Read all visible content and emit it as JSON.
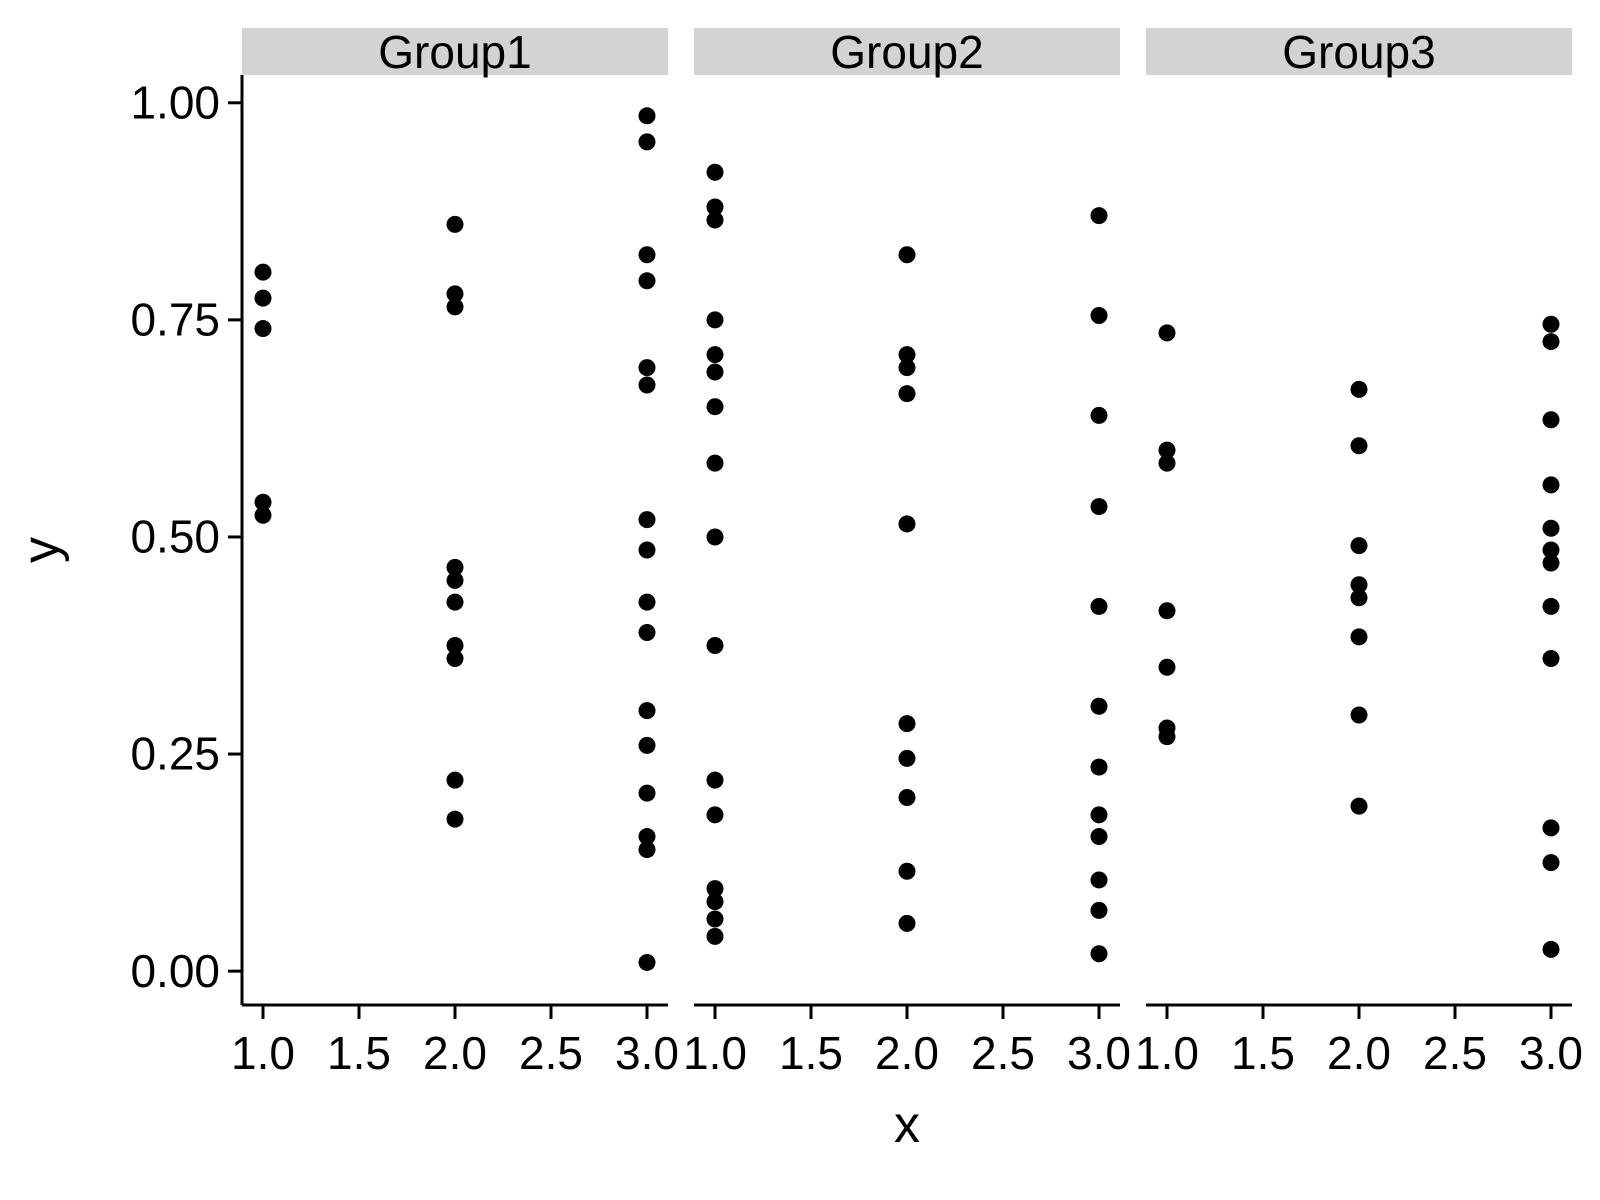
{
  "chart_data": {
    "type": "scatter",
    "title": "",
    "xlabel": "x",
    "ylabel": "y",
    "point_color": "#000000",
    "strip_fill": "#d3d3d3",
    "axis_color": "#000000",
    "grid": false,
    "legend": "none",
    "xlim": [
      0.89,
      3.1
    ],
    "ylim": [
      -0.039,
      1.032
    ],
    "x_ticks": [
      {
        "value": 1.0,
        "label": "1.0"
      },
      {
        "value": 1.5,
        "label": "1.5"
      },
      {
        "value": 2.0,
        "label": "2.0"
      },
      {
        "value": 2.5,
        "label": "2.5"
      },
      {
        "value": 3.0,
        "label": "3.0"
      }
    ],
    "y_ticks": [
      {
        "value": 0.0,
        "label": "0.00"
      },
      {
        "value": 0.25,
        "label": "0.25"
      },
      {
        "value": 0.5,
        "label": "0.50"
      },
      {
        "value": 0.75,
        "label": "0.75"
      },
      {
        "value": 1.0,
        "label": "1.00"
      }
    ],
    "facets": [
      {
        "label": "Group1",
        "points": [
          [
            1,
            0.805
          ],
          [
            1,
            0.775
          ],
          [
            1,
            0.74
          ],
          [
            1,
            0.54
          ],
          [
            1,
            0.525
          ],
          [
            2,
            0.86
          ],
          [
            2,
            0.78
          ],
          [
            2,
            0.765
          ],
          [
            2,
            0.465
          ],
          [
            2,
            0.45
          ],
          [
            2,
            0.425
          ],
          [
            2,
            0.375
          ],
          [
            2,
            0.36
          ],
          [
            2,
            0.22
          ],
          [
            2,
            0.175
          ],
          [
            3,
            0.985
          ],
          [
            3,
            0.955
          ],
          [
            3,
            0.825
          ],
          [
            3,
            0.795
          ],
          [
            3,
            0.695
          ],
          [
            3,
            0.675
          ],
          [
            3,
            0.52
          ],
          [
            3,
            0.485
          ],
          [
            3,
            0.425
          ],
          [
            3,
            0.39
          ],
          [
            3,
            0.3
          ],
          [
            3,
            0.26
          ],
          [
            3,
            0.205
          ],
          [
            3,
            0.155
          ],
          [
            3,
            0.14
          ],
          [
            3,
            0.01
          ]
        ]
      },
      {
        "label": "Group2",
        "points": [
          [
            1,
            0.92
          ],
          [
            1,
            0.88
          ],
          [
            1,
            0.865
          ],
          [
            1,
            0.75
          ],
          [
            1,
            0.71
          ],
          [
            1,
            0.69
          ],
          [
            1,
            0.65
          ],
          [
            1,
            0.585
          ],
          [
            1,
            0.5
          ],
          [
            1,
            0.375
          ],
          [
            1,
            0.22
          ],
          [
            1,
            0.18
          ],
          [
            1,
            0.095
          ],
          [
            1,
            0.08
          ],
          [
            1,
            0.06
          ],
          [
            1,
            0.04
          ],
          [
            2,
            0.825
          ],
          [
            2,
            0.71
          ],
          [
            2,
            0.695
          ],
          [
            2,
            0.665
          ],
          [
            2,
            0.515
          ],
          [
            2,
            0.285
          ],
          [
            2,
            0.245
          ],
          [
            2,
            0.2
          ],
          [
            2,
            0.115
          ],
          [
            2,
            0.055
          ],
          [
            3,
            0.87
          ],
          [
            3,
            0.755
          ],
          [
            3,
            0.64
          ],
          [
            3,
            0.535
          ],
          [
            3,
            0.42
          ],
          [
            3,
            0.305
          ],
          [
            3,
            0.235
          ],
          [
            3,
            0.18
          ],
          [
            3,
            0.155
          ],
          [
            3,
            0.105
          ],
          [
            3,
            0.07
          ],
          [
            3,
            0.02
          ]
        ]
      },
      {
        "label": "Group3",
        "points": [
          [
            1,
            0.735
          ],
          [
            1,
            0.6
          ],
          [
            1,
            0.585
          ],
          [
            1,
            0.415
          ],
          [
            1,
            0.35
          ],
          [
            1,
            0.28
          ],
          [
            1,
            0.27
          ],
          [
            2,
            0.67
          ],
          [
            2,
            0.605
          ],
          [
            2,
            0.49
          ],
          [
            2,
            0.445
          ],
          [
            2,
            0.43
          ],
          [
            2,
            0.385
          ],
          [
            2,
            0.295
          ],
          [
            2,
            0.19
          ],
          [
            3,
            0.745
          ],
          [
            3,
            0.725
          ],
          [
            3,
            0.635
          ],
          [
            3,
            0.56
          ],
          [
            3,
            0.51
          ],
          [
            3,
            0.485
          ],
          [
            3,
            0.47
          ],
          [
            3,
            0.42
          ],
          [
            3,
            0.36
          ],
          [
            3,
            0.165
          ],
          [
            3,
            0.125
          ],
          [
            3,
            0.025
          ]
        ]
      }
    ]
  }
}
